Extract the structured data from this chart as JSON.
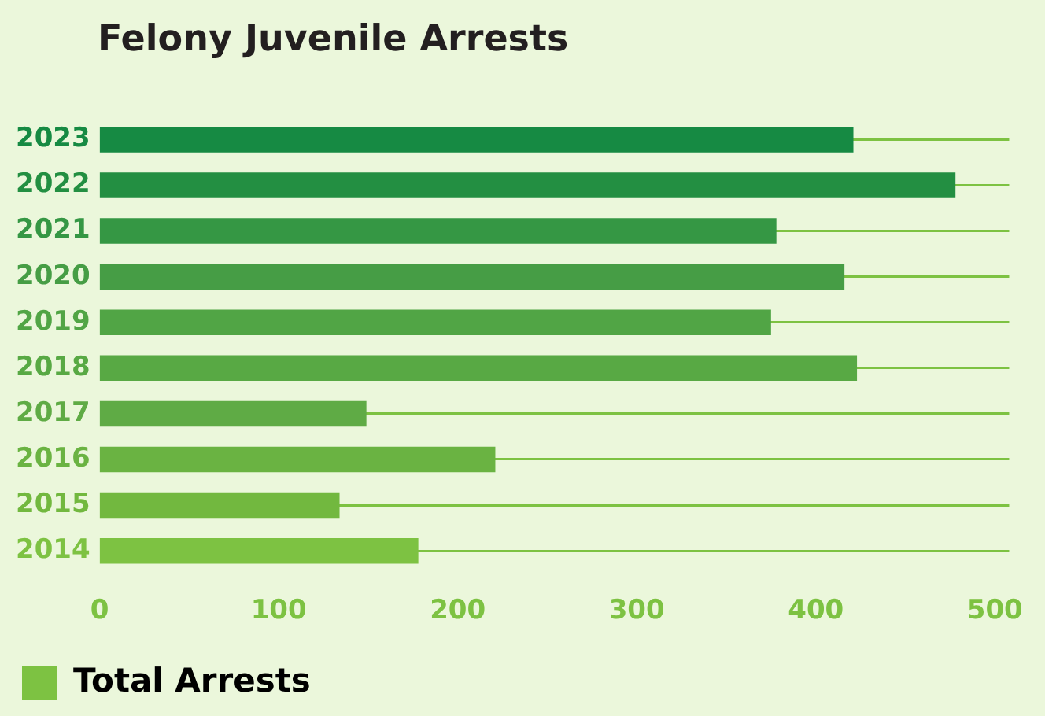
{
  "chart_data": {
    "type": "bar",
    "orientation": "horizontal",
    "title": "Felony Juvenile Arrests",
    "categories": [
      "2023",
      "2022",
      "2021",
      "2020",
      "2019",
      "2018",
      "2017",
      "2016",
      "2015",
      "2014"
    ],
    "series": [
      {
        "name": "Total Arrests",
        "color": "#7dc242",
        "values": [
          421,
          478,
          378,
          416,
          375,
          423,
          149,
          221,
          134,
          178
        ],
        "colors": [
          "#168a43",
          "#238f42",
          "#359744",
          "#469d45",
          "#51a545",
          "#58a944",
          "#5fab45",
          "#6ab342",
          "#72b83f",
          "#7dc242"
        ]
      }
    ],
    "xlim": [
      0,
      508
    ],
    "xticks": [
      0,
      100,
      200,
      300,
      400,
      500
    ],
    "grid": "y",
    "legend": "bottom left"
  }
}
